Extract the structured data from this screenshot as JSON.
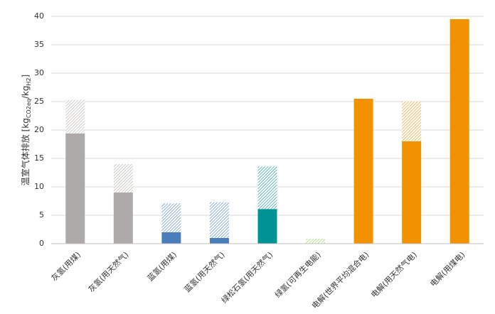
{
  "chart_data": {
    "type": "stacked_bar",
    "categories": [
      "灰氢(用煤)",
      "灰氢(用天然气)",
      "蓝氢(用煤)",
      "蓝氢(用天然气)",
      "绿松石氢(用天然气)",
      "绿氢(可再生电能)",
      "电解(世界平均混合电)",
      "电解(用天然气电)",
      "电解(用煤电)"
    ],
    "colors": [
      "#aeaaa9",
      "#aeaaa9",
      "#4a7ebb",
      "#4a7ebb",
      "#009393",
      "#92d050",
      "#f39200",
      "#f39200",
      "#f39200"
    ],
    "series": [
      {
        "pattern": "solid",
        "values": [
          19.4,
          9.0,
          2.0,
          1.0,
          6.1,
          0,
          25.5,
          18.0,
          39.5
        ]
      },
      {
        "pattern": "hatched",
        "values": [
          5.9,
          5.0,
          5.1,
          6.3,
          7.5,
          0.9,
          0,
          7.0,
          0
        ]
      }
    ],
    "ylabel_parts": [
      {
        "text": "温室气体排放 [kg"
      },
      {
        "text": "CO2eq",
        "sub": true
      },
      {
        "text": "/kg"
      },
      {
        "text": "H2",
        "sub": true
      },
      {
        "text": "]"
      }
    ],
    "ylim": [
      0,
      40
    ],
    "yticks": [
      0,
      5,
      10,
      15,
      20,
      25,
      30,
      35,
      40
    ],
    "grid": true
  }
}
